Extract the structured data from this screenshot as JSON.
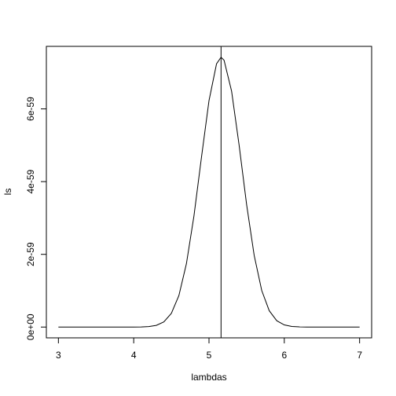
{
  "chart_data": {
    "type": "line",
    "xlabel": "lambdas",
    "ylabel": "ls",
    "x": [
      3,
      3.2,
      3.4,
      3.6,
      3.8,
      4,
      4.1,
      4.2,
      4.3,
      4.4,
      4.5,
      4.6,
      4.7,
      4.8,
      4.9,
      5,
      5.1,
      5.16,
      5.2,
      5.3,
      5.4,
      5.5,
      5.6,
      5.7,
      5.8,
      5.9,
      6,
      6.1,
      6.2,
      6.3,
      6.4,
      6.6,
      6.8,
      7
    ],
    "series": [
      {
        "color": "#000000",
        "values": [
          0,
          0,
          0,
          0,
          1e-64,
          7.3e-63,
          3.4e-62,
          1.35e-61,
          4.7e-61,
          1.42e-60,
          3.76e-60,
          8.66e-60,
          1.742e-59,
          3.054e-59,
          4.67e-59,
          6.227e-59,
          7.239e-59,
          7.42e-59,
          7.339e-59,
          6.488e-59,
          5.001e-59,
          3.362e-59,
          1.97e-59,
          1.007e-59,
          4.49e-60,
          1.74e-60,
          5.9e-61,
          1.74e-61,
          4.5e-62,
          1e-62,
          2e-63,
          0,
          0,
          0
        ]
      }
    ],
    "vline": 5.16,
    "xlim": [
      2.84,
      7.16
    ],
    "ylim": [
      -2.97e-60,
      7.72e-59
    ],
    "xticks": [
      3,
      4,
      5,
      6,
      7
    ],
    "yticks": [
      {
        "value": 0,
        "label": "0e+00"
      },
      {
        "value": 2e-59,
        "label": "2e-59"
      },
      {
        "value": 4e-59,
        "label": "4e-59"
      },
      {
        "value": 6e-59,
        "label": "6e-59"
      }
    ]
  }
}
